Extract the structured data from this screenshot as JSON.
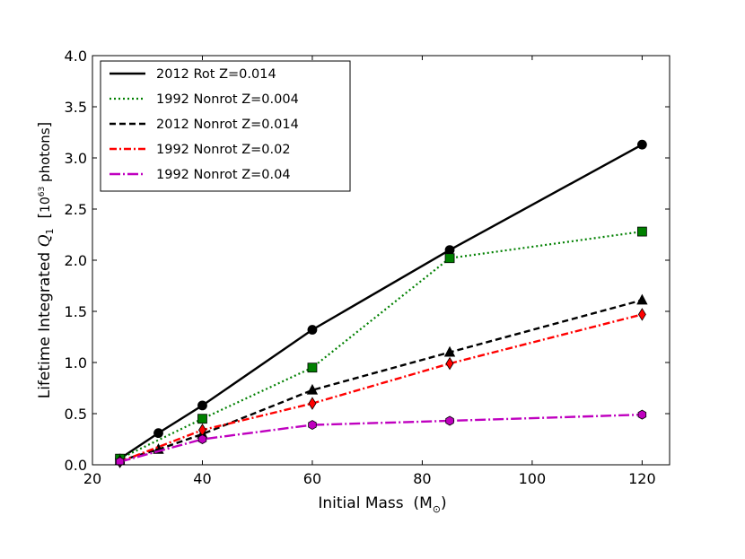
{
  "chart_data": {
    "type": "line",
    "title": "",
    "xlabel": "Initial Mass",
    "xlabel_unit": "M",
    "xlabel_unit_sub": "⊙",
    "ylabel": "Lifetime Integrated",
    "ylabel_symbol": "Q",
    "ylabel_symbol_sub": "1",
    "ylabel_unit_base": "10",
    "ylabel_unit_exp": "63",
    "ylabel_unit_word": "photons",
    "xlim": [
      20,
      125
    ],
    "ylim": [
      0,
      4.0
    ],
    "xticks": [
      20,
      40,
      60,
      80,
      100,
      120
    ],
    "xtick_labels": [
      "20",
      "40",
      "60",
      "80",
      "100",
      "120"
    ],
    "yticks": [
      0,
      0.5,
      1.0,
      1.5,
      2.0,
      2.5,
      3.0,
      3.5,
      4.0
    ],
    "ytick_labels": [
      "0.0",
      "0.5",
      "1.0",
      "1.5",
      "2.0",
      "2.5",
      "3.0",
      "3.5",
      "4.0"
    ],
    "grid": false,
    "legend_position": "top-left",
    "series": [
      {
        "name": "2012 Rot Z=0.014",
        "color": "#000000",
        "line_style": "solid",
        "marker": "circle",
        "x": [
          25,
          32,
          40,
          60,
          85,
          120
        ],
        "y": [
          0.06,
          0.31,
          0.58,
          1.32,
          2.1,
          3.13
        ]
      },
      {
        "name": "1992 Nonrot Z=0.004",
        "color": "#008000",
        "line_style": "dotted",
        "marker": "square",
        "x": [
          25,
          40,
          60,
          85,
          120
        ],
        "y": [
          0.06,
          0.45,
          0.95,
          2.02,
          2.28
        ]
      },
      {
        "name": "2012 Nonrot Z=0.014",
        "color": "#000000",
        "line_style": "dashed",
        "marker": "triangle",
        "x": [
          25,
          32,
          40,
          60,
          85,
          120
        ],
        "y": [
          0.04,
          0.15,
          0.3,
          0.73,
          1.1,
          1.61
        ]
      },
      {
        "name": "1992 Nonrot Z=0.02",
        "color": "#ff0000",
        "line_style": "dashdot",
        "marker": "diamond",
        "x": [
          25,
          40,
          60,
          85,
          120
        ],
        "y": [
          0.03,
          0.34,
          0.6,
          0.99,
          1.47
        ]
      },
      {
        "name": "1992 Nonrot Z=0.04",
        "color": "#bf00bf",
        "line_style": "longdashdot",
        "marker": "hexagon",
        "x": [
          25,
          40,
          60,
          85,
          120
        ],
        "y": [
          0.03,
          0.25,
          0.39,
          0.43,
          0.49
        ]
      }
    ]
  }
}
